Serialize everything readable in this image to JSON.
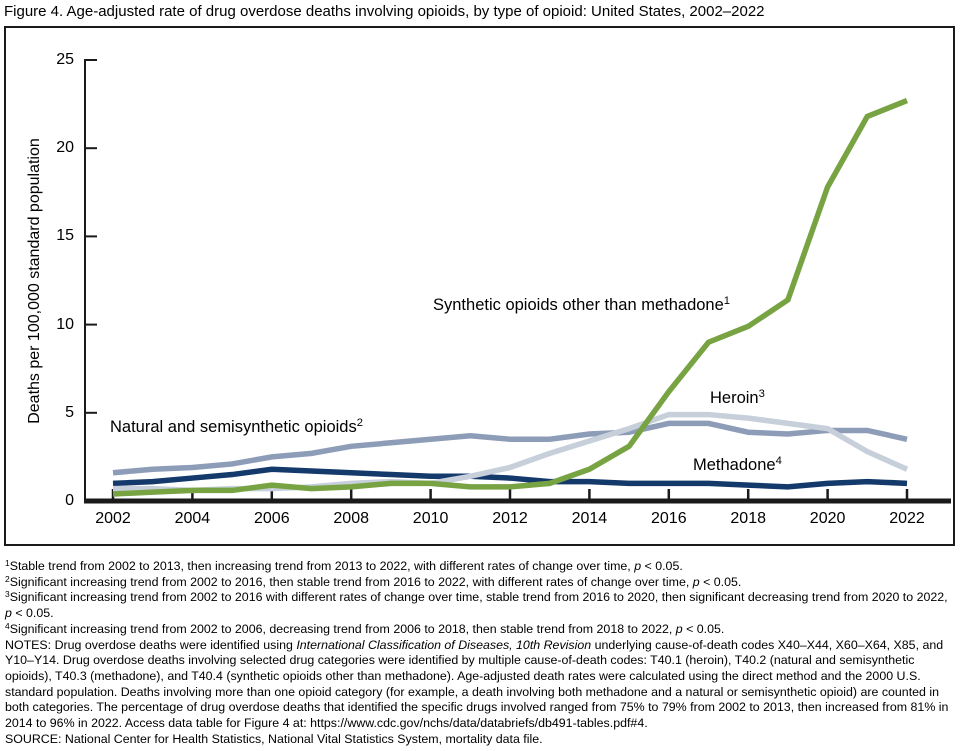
{
  "chart_data": {
    "type": "line",
    "title": "Figure 4. Age-adjusted rate of drug overdose deaths involving opioids, by type of opioid: United States, 2002–2022",
    "xlabel": "",
    "ylabel": "Deaths per 100,000 standard population",
    "ylim": [
      0,
      25
    ],
    "yticks": [
      0,
      5,
      10,
      15,
      20,
      25
    ],
    "x": [
      2002,
      2003,
      2004,
      2005,
      2006,
      2007,
      2008,
      2009,
      2010,
      2011,
      2012,
      2013,
      2014,
      2015,
      2016,
      2017,
      2018,
      2019,
      2020,
      2021,
      2022
    ],
    "x_tick_years": [
      2002,
      2004,
      2006,
      2008,
      2010,
      2012,
      2014,
      2016,
      2018,
      2020,
      2022
    ],
    "grid": false,
    "legend": "inline-labels",
    "series": [
      {
        "id": "natural",
        "name": "Natural and semisynthetic opioids",
        "footnote_marker": "2",
        "color": "#8d9db8",
        "values": [
          1.6,
          1.8,
          1.9,
          2.1,
          2.5,
          2.7,
          3.1,
          3.3,
          3.5,
          3.7,
          3.5,
          3.5,
          3.8,
          3.9,
          4.4,
          4.4,
          3.9,
          3.8,
          4.0,
          4.0,
          3.5
        ]
      },
      {
        "id": "methadone",
        "name": "Methadone",
        "footnote_marker": "4",
        "color": "#14396b",
        "values": [
          1.0,
          1.1,
          1.3,
          1.5,
          1.8,
          1.7,
          1.6,
          1.5,
          1.4,
          1.4,
          1.3,
          1.1,
          1.1,
          1.0,
          1.0,
          1.0,
          0.9,
          0.8,
          1.0,
          1.1,
          1.0
        ]
      },
      {
        "id": "heroin",
        "name": "Heroin",
        "footnote_marker": "3",
        "color": "#c6cfda",
        "values": [
          0.7,
          0.7,
          0.6,
          0.7,
          0.7,
          0.8,
          1.0,
          1.1,
          1.0,
          1.4,
          1.9,
          2.7,
          3.4,
          4.1,
          4.9,
          4.9,
          4.7,
          4.4,
          4.1,
          2.8,
          1.8
        ]
      },
      {
        "id": "synthetic",
        "name": "Synthetic opioids other than methadone",
        "footnote_marker": "1",
        "color": "#78a343",
        "values": [
          0.4,
          0.5,
          0.6,
          0.6,
          0.9,
          0.7,
          0.8,
          1.0,
          1.0,
          0.8,
          0.8,
          1.0,
          1.8,
          3.1,
          6.2,
          9.0,
          9.9,
          11.4,
          17.8,
          21.8,
          22.7
        ]
      }
    ]
  },
  "footnotes": [
    [
      {
        "t": "1",
        "sup": true
      },
      {
        "t": "Stable trend from 2002 to 2013, then increasing trend from 2013 to 2022, with different rates of change over time, "
      },
      {
        "t": "p",
        "i": true
      },
      {
        "t": " < 0.05."
      }
    ],
    [
      {
        "t": "2",
        "sup": true
      },
      {
        "t": "Significant increasing trend from 2002 to 2016, then stable trend from 2016 to 2022, with different rates of change over time, "
      },
      {
        "t": "p",
        "i": true
      },
      {
        "t": " < 0.05."
      }
    ],
    [
      {
        "t": "3",
        "sup": true
      },
      {
        "t": "Significant increasing trend from 2002 to 2016 with different rates of change over time, stable trend from 2016 to 2020, then significant decreasing trend from 2020 to 2022, "
      },
      {
        "t": "p",
        "i": true
      },
      {
        "t": " < 0.05."
      }
    ],
    [
      {
        "t": "4",
        "sup": true
      },
      {
        "t": "Significant increasing trend from 2002 to 2006, decreasing trend from 2006 to 2018, then stable trend from 2018 to 2022, "
      },
      {
        "t": "p",
        "i": true
      },
      {
        "t": " < 0.05."
      }
    ]
  ],
  "notes": [
    {
      "t": "NOTES: Drug overdose deaths were identified using "
    },
    {
      "t": "International Classification of Diseases, 10th Revision",
      "i": true
    },
    {
      "t": " underlying cause-of-death codes X40–X44, X60–X64, X85, and Y10–Y14. Drug overdose deaths involving selected drug categories were identified by multiple cause-of-death codes: T40.1 (heroin), T40.2 (natural and semisynthetic opioids), T40.3 (methadone), and T40.4 (synthetic opioids other than methadone). Age-adjusted death rates were calculated using the direct method and the 2000 U.S. standard population. Deaths involving more than one opioid category (for example, a death involving both methadone and a natural or semisynthetic opioid) are counted in both categories. The percentage of drug overdose deaths that identified the specific drugs involved ranged from 75% to 79% from 2002 to 2013, then increased from 81% in 2014 to 96% in 2022. Access data table for Figure 4 at: https://www.cdc.gov/nchs/data/databriefs/db491-tables.pdf#4."
    }
  ],
  "source": "SOURCE: National Center for Health Statistics, National Vital Statistics System, mortality data file."
}
